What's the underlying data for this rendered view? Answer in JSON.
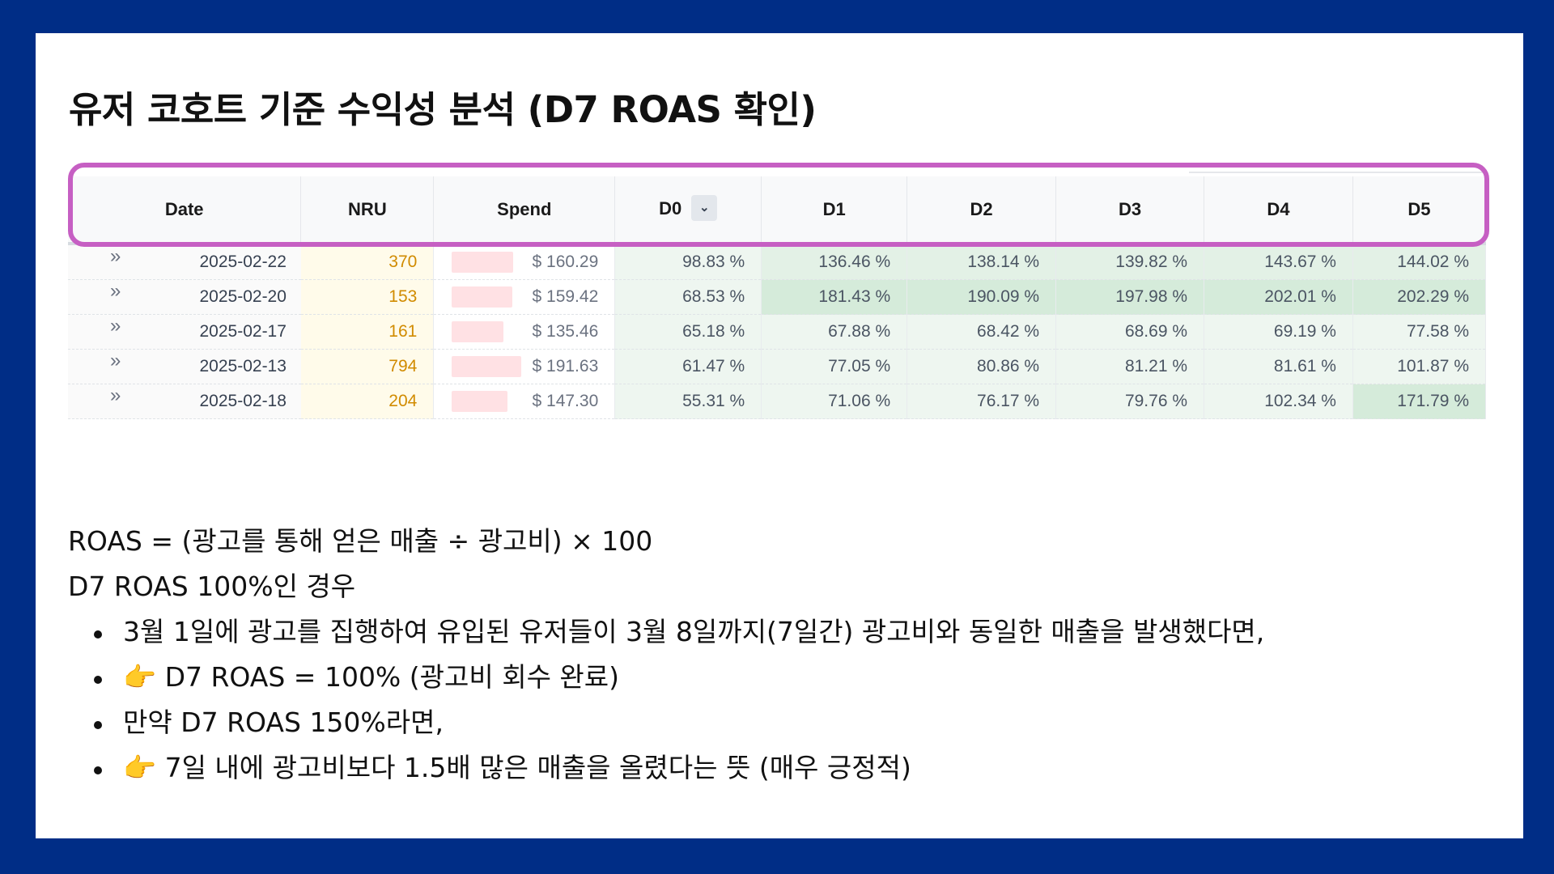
{
  "title": "유저 코호트 기준 수익성 분석 (D7 ROAS 확인)",
  "table": {
    "headers": [
      "Date",
      "NRU",
      "Spend",
      "D0",
      "D1",
      "D2",
      "D3",
      "D4",
      "D5"
    ],
    "dropdown_icon": "chevron-down-icon",
    "expand_icon": "»",
    "rows": [
      {
        "date": "2025-02-22",
        "nru": "370",
        "spend": "$ 160.29",
        "spend_fraction": 0.88,
        "d": [
          "98.83 %",
          "136.46 %",
          "138.14 %",
          "139.82 %",
          "143.67 %",
          "144.02 %"
        ]
      },
      {
        "date": "2025-02-20",
        "nru": "153",
        "spend": "$ 159.42",
        "spend_fraction": 0.87,
        "d": [
          "68.53 %",
          "181.43 %",
          "190.09 %",
          "197.98 %",
          "202.01 %",
          "202.29 %"
        ]
      },
      {
        "date": "2025-02-17",
        "nru": "161",
        "spend": "$ 135.46",
        "spend_fraction": 0.74,
        "d": [
          "65.18 %",
          "67.88 %",
          "68.42 %",
          "68.69 %",
          "69.19 %",
          "77.58 %"
        ]
      },
      {
        "date": "2025-02-13",
        "nru": "794",
        "spend": "$ 191.63",
        "spend_fraction": 1.0,
        "d": [
          "61.47 %",
          "77.05 %",
          "80.86 %",
          "81.21 %",
          "81.61 %",
          "101.87 %"
        ]
      },
      {
        "date": "2025-02-18",
        "nru": "204",
        "spend": "$ 147.30",
        "spend_fraction": 0.8,
        "d": [
          "55.31 %",
          "71.06 %",
          "76.17 %",
          "79.76 %",
          "102.34 %",
          "171.79 %"
        ]
      }
    ]
  },
  "colors": {
    "background": "#002D86",
    "highlight_border": "#C65FC3",
    "nru_text": "#D18B00",
    "spend_bar": "#FFE1E4",
    "roas_light": "#EEF6F0",
    "roas_mid": "#E3F1E6",
    "roas_strong": "#D5EBDA"
  },
  "notes": {
    "formula": "ROAS = (광고를 통해 얻은 매출 ÷ 광고비) × 100",
    "case_heading": "D7 ROAS 100%인 경우",
    "bullets": [
      "3월 1일에 광고를 집행하여 유입된 유저들이 3월 8일까지(7일간) 광고비와 동일한 매출을 발생했다면,",
      "👉 D7 ROAS = 100% (광고비 회수 완료)",
      "만약 D7 ROAS 150%라면,",
      "👉 7일 내에 광고비보다 1.5배 많은 매출을 올렸다는 뜻 (매우 긍정적)"
    ]
  }
}
